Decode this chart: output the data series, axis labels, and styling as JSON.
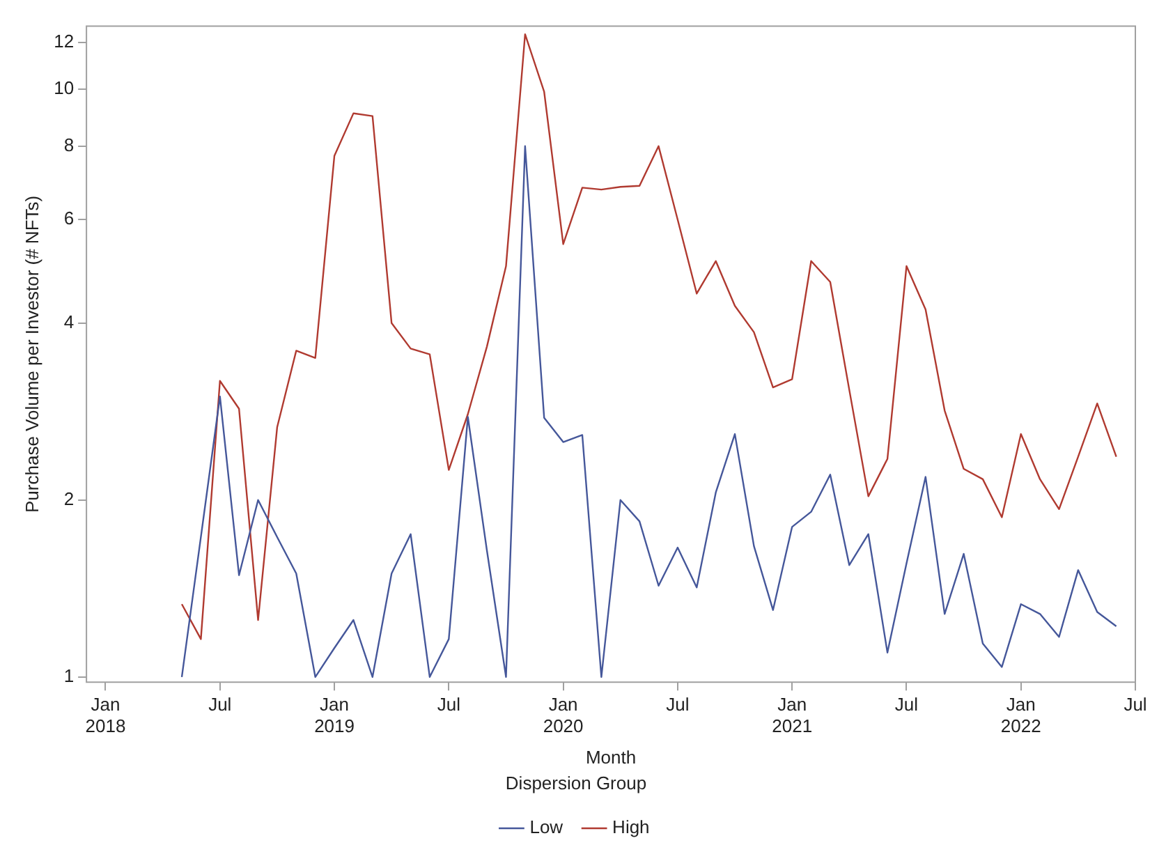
{
  "chart_data": {
    "type": "line",
    "xlabel": "Month",
    "ylabel": "Purchase Volume per Investor (# NFTs)",
    "legend_title": "Dispersion Group",
    "x": [
      "2018-05",
      "2018-06",
      "2018-07",
      "2018-08",
      "2018-09",
      "2018-10",
      "2018-11",
      "2018-12",
      "2019-01",
      "2019-02",
      "2019-03",
      "2019-04",
      "2019-05",
      "2019-06",
      "2019-07",
      "2019-08",
      "2019-09",
      "2019-10",
      "2019-11",
      "2019-12",
      "2020-01",
      "2020-02",
      "2020-03",
      "2020-04",
      "2020-05",
      "2020-06",
      "2020-07",
      "2020-08",
      "2020-09",
      "2020-10",
      "2020-11",
      "2020-12",
      "2021-01",
      "2021-02",
      "2021-03",
      "2021-04",
      "2021-05",
      "2021-06",
      "2021-07",
      "2021-08",
      "2021-09",
      "2021-10",
      "2021-11",
      "2021-12",
      "2022-01",
      "2022-02",
      "2022-03",
      "2022-04",
      "2022-05",
      "2022-06"
    ],
    "series": [
      {
        "name": "Low",
        "color": "#45579a",
        "values": [
          1.0,
          1.73,
          3.0,
          1.49,
          2.0,
          1.73,
          1.5,
          1.0,
          1.12,
          1.25,
          1.0,
          1.5,
          1.75,
          1.0,
          1.16,
          2.77,
          1.64,
          1.0,
          8.0,
          2.76,
          2.51,
          2.58,
          1.0,
          2.0,
          1.84,
          1.43,
          1.66,
          1.42,
          2.06,
          2.59,
          1.67,
          1.3,
          1.8,
          1.91,
          2.21,
          1.55,
          1.75,
          1.1,
          1.56,
          2.19,
          1.28,
          1.62,
          1.14,
          1.04,
          1.33,
          1.28,
          1.17,
          1.52,
          1.29,
          1.22
        ]
      },
      {
        "name": "High",
        "color": "#b03a30",
        "values": [
          1.33,
          1.16,
          3.19,
          2.86,
          1.25,
          2.66,
          3.59,
          3.49,
          7.7,
          9.1,
          9.0,
          4.0,
          3.62,
          3.54,
          2.25,
          2.8,
          3.65,
          5.0,
          12.4,
          9.9,
          5.45,
          6.8,
          6.75,
          6.82,
          6.85,
          8.0,
          6.0,
          4.49,
          5.1,
          4.28,
          3.86,
          3.11,
          3.21,
          5.1,
          4.7,
          3.08,
          2.03,
          2.35,
          5.0,
          4.22,
          2.84,
          2.26,
          2.17,
          1.87,
          2.59,
          2.17,
          1.93,
          2.37,
          2.92,
          2.37
        ]
      }
    ],
    "log": "y",
    "ylim": [
      0.98,
      12.8
    ],
    "yticks": [
      1,
      2,
      4,
      6,
      8,
      10,
      12
    ],
    "xlim": [
      "2017-12",
      "2022-07"
    ],
    "xticks": [
      {
        "value": "2018-01",
        "label": "Jan 2018"
      },
      {
        "value": "2018-07",
        "label": "Jul"
      },
      {
        "value": "2019-01",
        "label": "Jan 2019"
      },
      {
        "value": "2019-07",
        "label": "Jul"
      },
      {
        "value": "2020-01",
        "label": "Jan 2020"
      },
      {
        "value": "2020-07",
        "label": "Jul"
      },
      {
        "value": "2021-01",
        "label": "Jan 2021"
      },
      {
        "value": "2021-07",
        "label": "Jul"
      },
      {
        "value": "2022-01",
        "label": "Jan 2022"
      },
      {
        "value": "2022-07",
        "label": "Jul"
      }
    ],
    "grid": false,
    "legend": "bottom",
    "marker": "none",
    "line_style": "solid"
  }
}
